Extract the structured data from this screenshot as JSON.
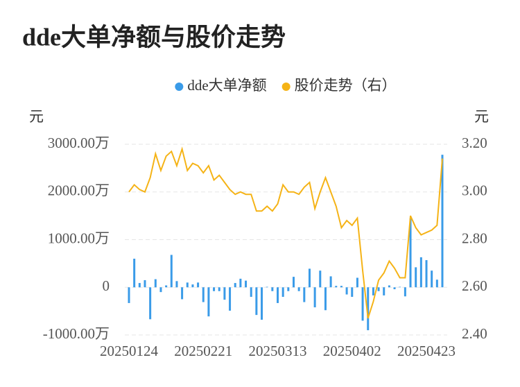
{
  "chart_data": {
    "type": "combo",
    "title": "dde大单净额与股价走势",
    "y_axis_label": "元",
    "y2_axis_label": "元",
    "categories": [
      "20250124",
      null,
      null,
      null,
      null,
      null,
      null,
      null,
      null,
      null,
      null,
      null,
      null,
      null,
      "20250221",
      null,
      null,
      null,
      null,
      null,
      null,
      null,
      null,
      null,
      null,
      null,
      null,
      null,
      "20250313",
      null,
      null,
      null,
      null,
      null,
      null,
      null,
      null,
      null,
      null,
      null,
      null,
      null,
      "20250402",
      null,
      null,
      null,
      null,
      null,
      null,
      null,
      null,
      null,
      null,
      null,
      null,
      null,
      "20250423",
      null,
      null,
      null
    ],
    "series": [
      {
        "name": "dde大单净额",
        "type": "bar",
        "color": "#3a9be8",
        "values": [
          -330,
          600,
          90,
          150,
          -670,
          170,
          -100,
          40,
          680,
          130,
          -250,
          100,
          60,
          100,
          -310,
          -610,
          -80,
          -80,
          -260,
          -490,
          90,
          180,
          140,
          -200,
          -580,
          -680,
          10,
          -80,
          -330,
          -200,
          -80,
          220,
          -80,
          -310,
          390,
          -420,
          350,
          -480,
          230,
          30,
          30,
          -150,
          -200,
          200,
          -700,
          -900,
          -170,
          -80,
          -170,
          40,
          -40,
          10,
          -190,
          1440,
          420,
          630,
          570,
          350,
          160,
          2780
        ]
      },
      {
        "name": "股价走势（右）",
        "type": "line",
        "axis": "y2",
        "color": "#f5b316",
        "values": [
          3.0,
          3.03,
          3.01,
          3.0,
          3.06,
          3.16,
          3.09,
          3.15,
          3.17,
          3.11,
          3.18,
          3.09,
          3.12,
          3.11,
          3.08,
          3.11,
          3.05,
          3.07,
          3.04,
          3.01,
          2.99,
          3.0,
          2.99,
          2.99,
          2.92,
          2.92,
          2.94,
          2.92,
          2.95,
          3.03,
          3.0,
          3.0,
          2.99,
          3.02,
          3.04,
          2.93,
          3.0,
          3.06,
          3.0,
          2.94,
          2.85,
          2.88,
          2.86,
          2.89,
          2.67,
          2.47,
          2.54,
          2.63,
          2.66,
          2.71,
          2.68,
          2.64,
          2.64,
          2.9,
          2.85,
          2.82,
          2.83,
          2.84,
          2.86,
          3.14
        ]
      }
    ],
    "ylim": [
      -1000,
      3000
    ],
    "yticks": [
      {
        "value": -1000,
        "label": "-1000.00万"
      },
      0,
      {
        "value": 1000,
        "label": "1000.00万"
      },
      {
        "value": 2000,
        "label": "2000.00万"
      },
      {
        "value": 3000,
        "label": "3000.00万"
      }
    ],
    "y2lim": [
      2.4,
      3.2
    ],
    "y2ticks": [
      {
        "value": 2.4,
        "label": "2.40"
      },
      {
        "value": 2.6,
        "label": "2.60"
      },
      {
        "value": 2.8,
        "label": "2.80"
      },
      {
        "value": 3.0,
        "label": "3.00"
      },
      {
        "value": 3.2,
        "label": "3.20"
      }
    ],
    "grid": true,
    "legend": "top"
  }
}
